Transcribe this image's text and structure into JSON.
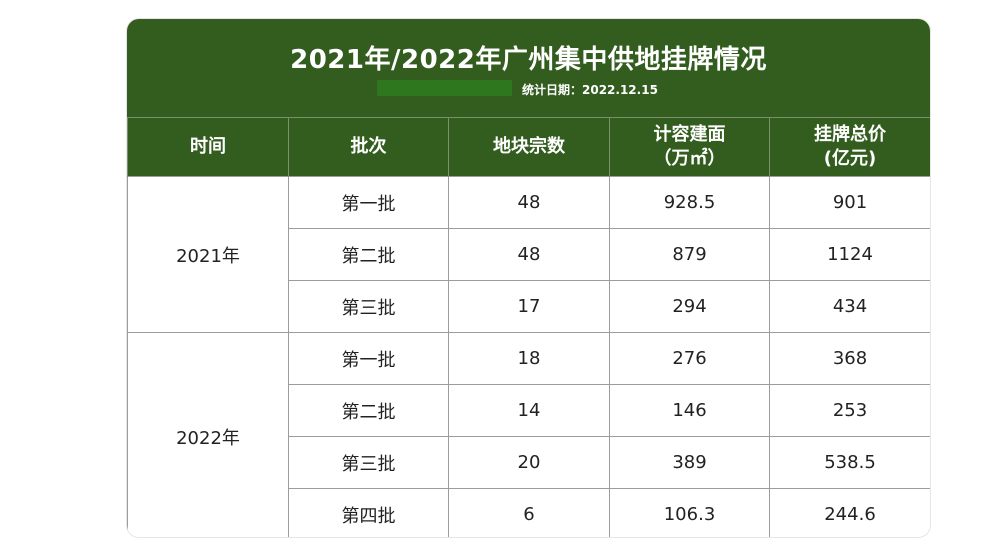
{
  "title": "2021年/2022年广州集中供地挂牌情况",
  "date_label": "统计日期：2022.12.15",
  "colors": {
    "header_bg": "#335d1f",
    "header_text": "#ffffff",
    "border": "#9c9c9c"
  },
  "headers": {
    "time": "时间",
    "batch": "批次",
    "lots": "地块宗数",
    "area_line1": "计容建面",
    "area_line2": "（万㎡）",
    "price_line1": "挂牌总价",
    "price_line2": "(亿元)"
  },
  "groups": [
    {
      "year": "2021年",
      "rows": [
        {
          "batch": "第一批",
          "lots": "48",
          "area": "928.5",
          "price": "901"
        },
        {
          "batch": "第二批",
          "lots": "48",
          "area": "879",
          "price": "1124"
        },
        {
          "batch": "第三批",
          "lots": "17",
          "area": "294",
          "price": "434"
        }
      ]
    },
    {
      "year": "2022年",
      "rows": [
        {
          "batch": "第一批",
          "lots": "18",
          "area": "276",
          "price": "368"
        },
        {
          "batch": "第二批",
          "lots": "14",
          "area": "146",
          "price": "253"
        },
        {
          "batch": "第三批",
          "lots": "20",
          "area": "389",
          "price": "538.5"
        },
        {
          "batch": "第四批",
          "lots": "6",
          "area": "106.3",
          "price": "244.6"
        }
      ]
    }
  ]
}
